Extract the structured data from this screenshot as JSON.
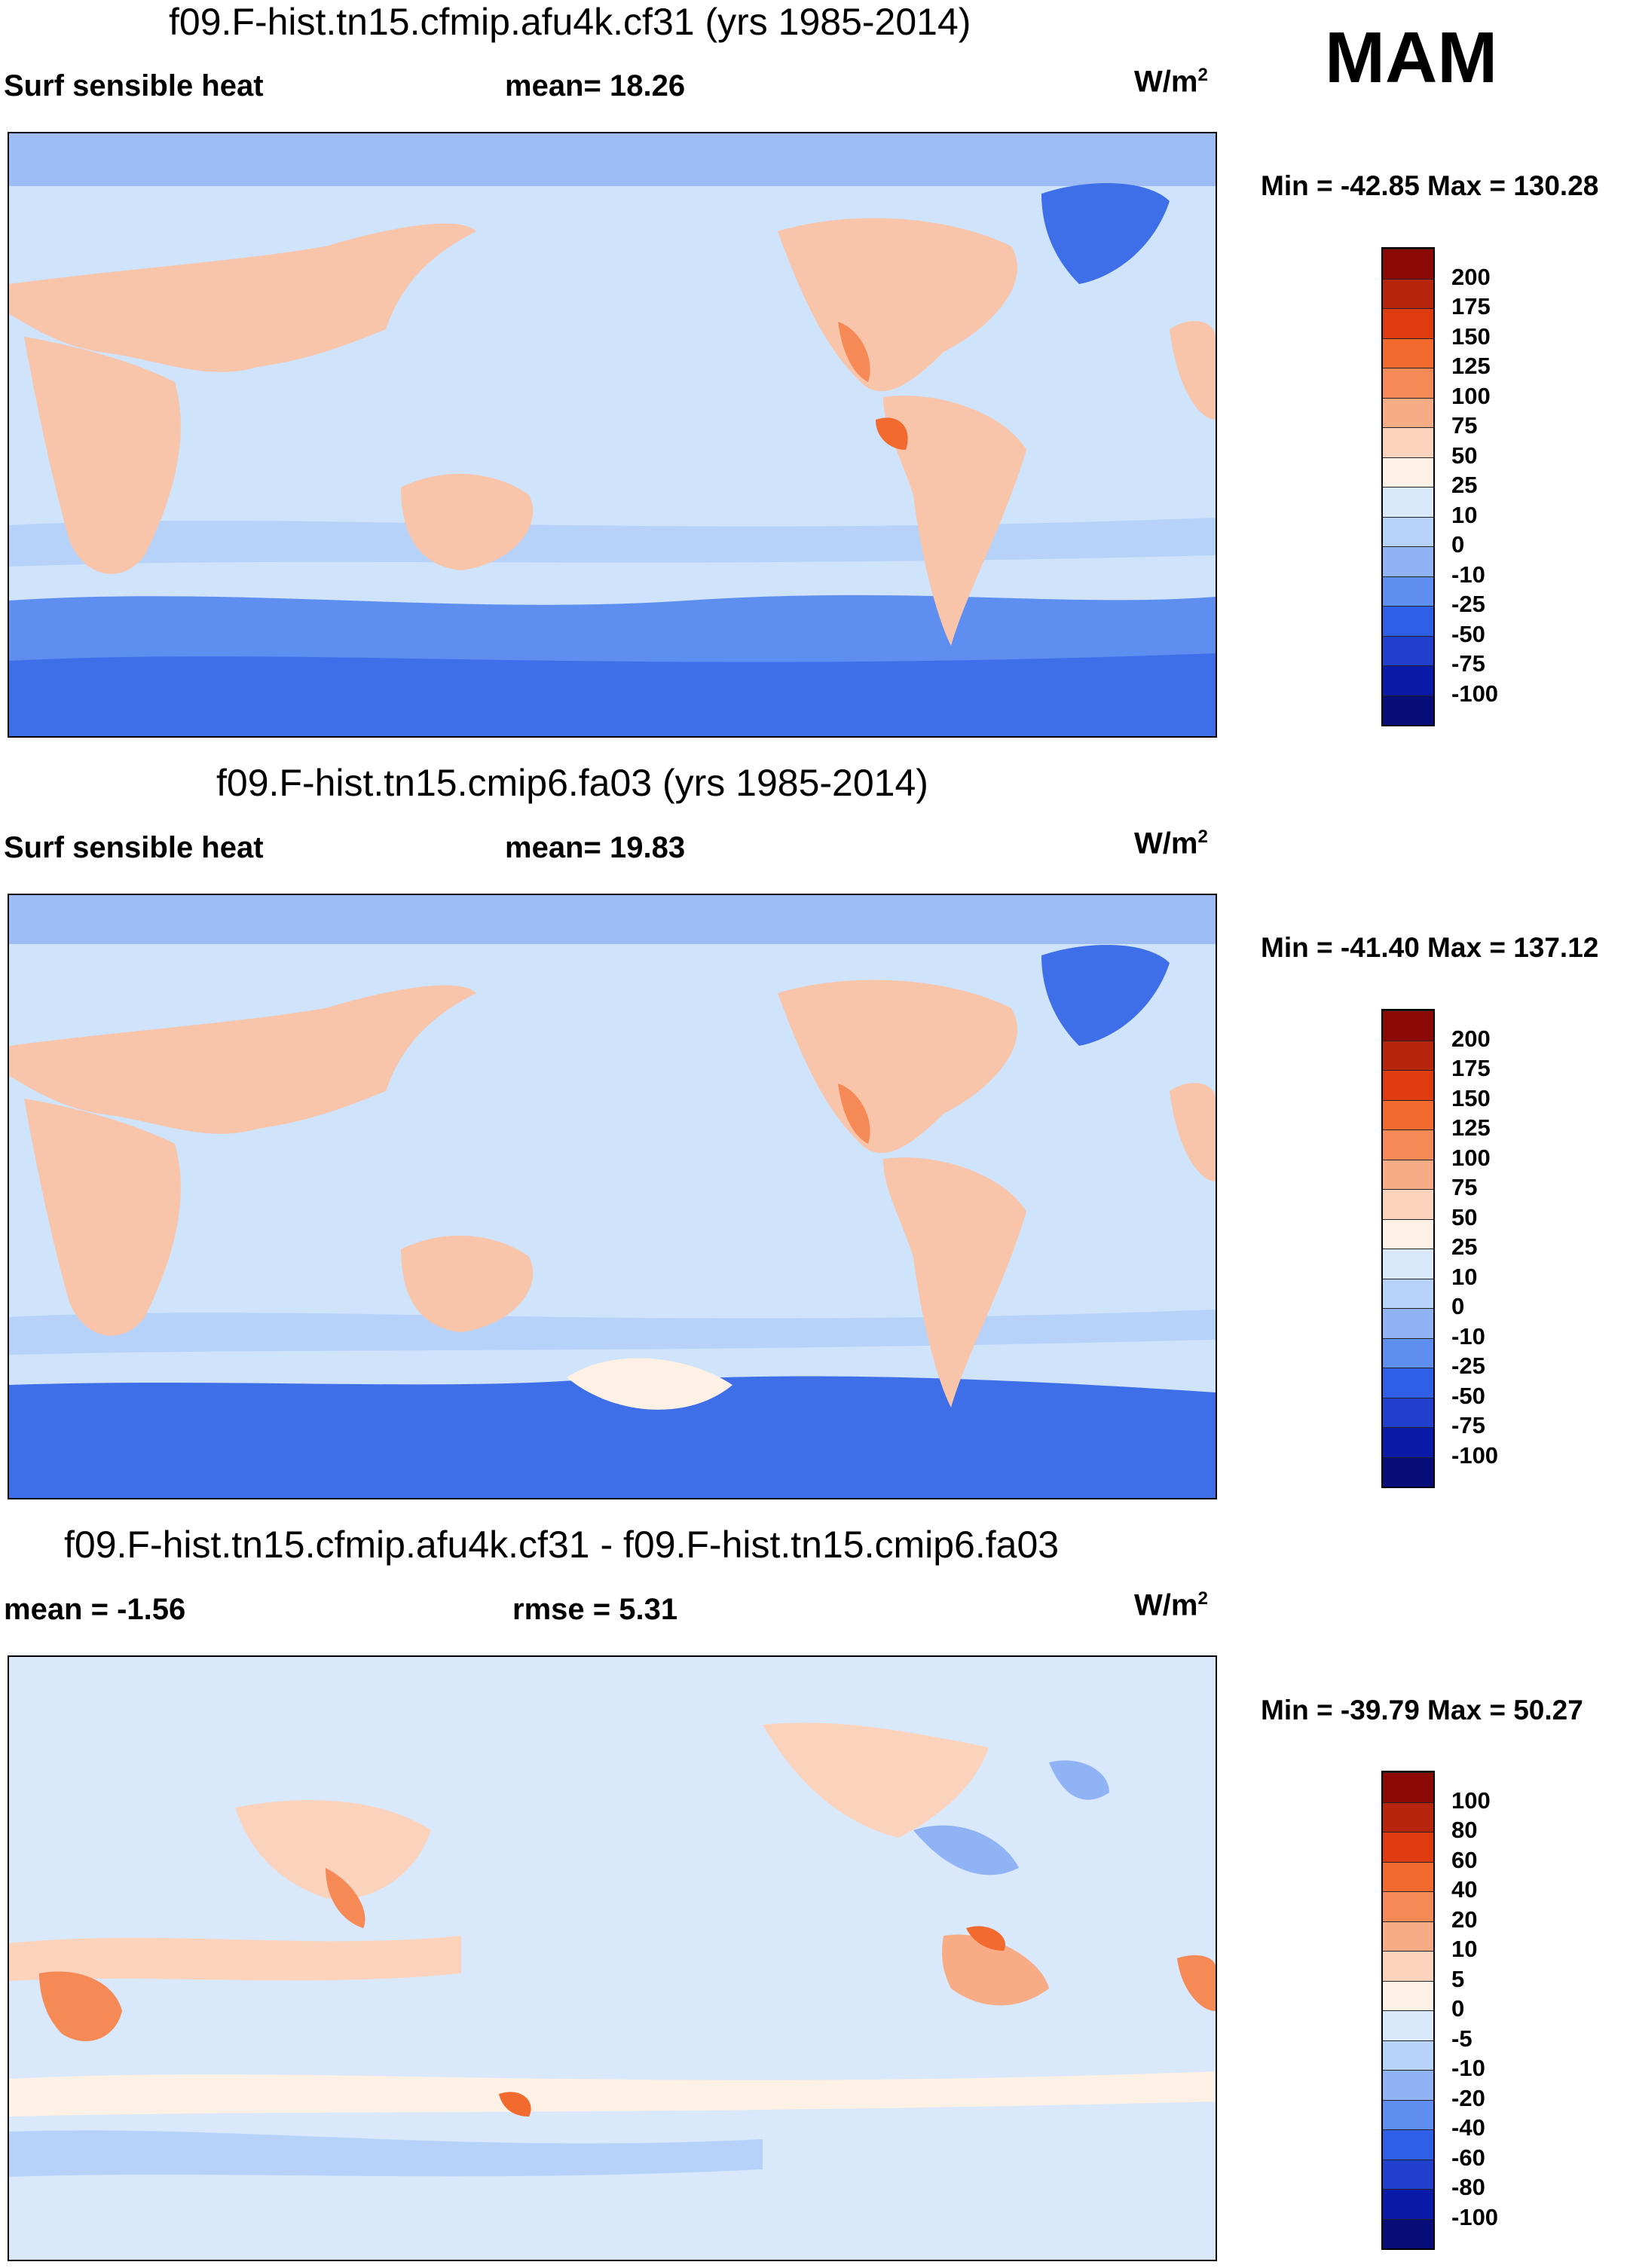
{
  "season": "MAM",
  "panels": [
    {
      "title": "f09.F-hist.tn15.cfmip.afu4k.cf31 (yrs 1985-2014)",
      "left_label": "Surf sensible heat",
      "center_label": "mean=  18.26",
      "units": "W/m",
      "units_sup": "2",
      "minmax": "Min = -42.85 Max = 130.28",
      "colorbar_labels": [
        "200",
        "175",
        "150",
        "125",
        "100",
        "75",
        "50",
        "25",
        "10",
        "0",
        "-10",
        "-25",
        "-50",
        "-75",
        "-100"
      ]
    },
    {
      "title": "f09.F-hist.tn15.cmip6.fa03 (yrs 1985-2014)",
      "left_label": "Surf sensible heat",
      "center_label": "mean=  19.83",
      "units": "W/m",
      "units_sup": "2",
      "minmax": "Min = -41.40 Max = 137.12",
      "colorbar_labels": [
        "200",
        "175",
        "150",
        "125",
        "100",
        "75",
        "50",
        "25",
        "10",
        "0",
        "-10",
        "-25",
        "-50",
        "-75",
        "-100"
      ]
    },
    {
      "title": "f09.F-hist.tn15.cfmip.afu4k.cf31 - f09.F-hist.tn15.cmip6.fa03",
      "left_label": "mean =  -1.56",
      "center_label": "rmse =    5.31",
      "units": "W/m",
      "units_sup": "2",
      "minmax": "Min = -39.79 Max =  50.27",
      "colorbar_labels": [
        "100",
        "80",
        "60",
        "40",
        "20",
        "10",
        "5",
        "0",
        "-5",
        "-10",
        "-20",
        "-40",
        "-60",
        "-80",
        "-100"
      ]
    }
  ],
  "colors": {
    "scale": [
      "#8b0a06",
      "#b7260c",
      "#de3c0f",
      "#f26a2e",
      "#f58a57",
      "#f7ac86",
      "#fbd3bc",
      "#fdf0e5",
      "#d9e9fb",
      "#b6d2f8",
      "#8fb3f5",
      "#5e8ff0",
      "#2f5fe6",
      "#1f3fcc",
      "#0b1aa8",
      "#070e7a"
    ],
    "ocean": "#cfe3fb",
    "land_warm": "#f8c4aa",
    "cold_band": "#3f6fe8",
    "arctic": "#9dbcf6"
  }
}
